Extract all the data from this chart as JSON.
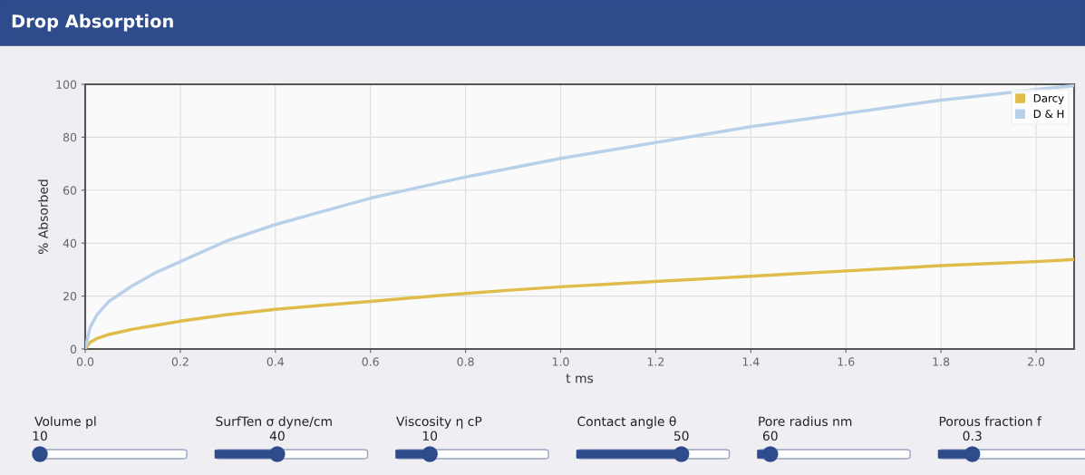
{
  "chart_data": {
    "type": "line",
    "title": "Drop Absorption",
    "xlabel": "t ms",
    "ylabel": "% Absorbed",
    "x": [
      0,
      0.01,
      0.025,
      0.05,
      0.1,
      0.15,
      0.2,
      0.3,
      0.4,
      0.5,
      0.6,
      0.7,
      0.8,
      0.9,
      1.0,
      1.1,
      1.2,
      1.3,
      1.4,
      1.5,
      1.6,
      1.7,
      1.8,
      1.9,
      2.0,
      2.08
    ],
    "series": [
      {
        "name": "Darcy",
        "color": "#e0bc4a",
        "values": [
          0,
          2.5,
          4,
          5.5,
          7.5,
          9,
          10.5,
          13,
          15,
          16.5,
          18,
          19.5,
          21,
          22.3,
          23.5,
          24.5,
          25.5,
          26.5,
          27.5,
          28.5,
          29.5,
          30.5,
          31.5,
          32.3,
          33,
          33.8
        ]
      },
      {
        "name": "D & H",
        "color": "#b8d0ea",
        "values": [
          0,
          8,
          13,
          18,
          24,
          29,
          33,
          41,
          47,
          52,
          57,
          61,
          65,
          68.5,
          72,
          75,
          78,
          81,
          84,
          86.5,
          89,
          91.5,
          94,
          96,
          98,
          99.5
        ]
      }
    ],
    "xlim": [
      0,
      2.08
    ],
    "xticks": [
      {
        "value": 0,
        "label": "0.0"
      },
      0.2,
      0.4,
      0.6,
      0.8,
      {
        "value": 1,
        "label": "1.0"
      },
      1.2,
      1.4,
      1.6,
      1.8,
      {
        "value": 2,
        "label": "2.0"
      }
    ],
    "ylim": [
      0,
      100
    ],
    "yticks": [
      0,
      20,
      40,
      60,
      80,
      100
    ],
    "grid": true,
    "legend": "top right",
    "marker": "none",
    "line_style": "solid",
    "annotations": [
      "Volume pl",
      "10",
      "SurfTen σ dyne/cm",
      "40",
      "Viscosity η cP",
      "10",
      "Contact angle θ",
      "50",
      "Pore radius nm",
      "60",
      "Porous fraction f",
      "0.3"
    ]
  }
}
